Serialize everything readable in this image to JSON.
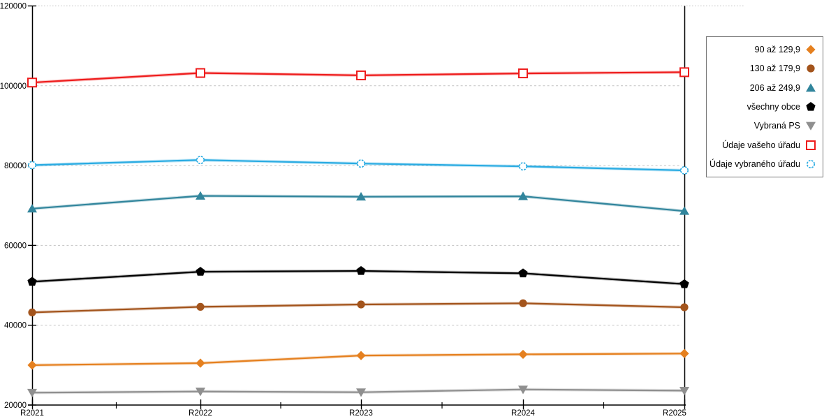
{
  "chart_data": {
    "type": "line",
    "title": "",
    "xlabel": "",
    "ylabel": "",
    "categories": [
      "R2021",
      "R2022",
      "R2023",
      "R2024",
      "R2025"
    ],
    "series": [
      {
        "name": "90 až 129,9",
        "marker": "diamond",
        "color": "#e5801f",
        "values": [
          30000,
          30500,
          32400,
          32700,
          32900
        ]
      },
      {
        "name": "130 až 179,9",
        "marker": "circle",
        "color": "#a3541c",
        "values": [
          43200,
          44600,
          45200,
          45500,
          44500
        ]
      },
      {
        "name": "206 až 249,9",
        "marker": "triangle-up",
        "color": "#31859c",
        "values": [
          69200,
          72400,
          72200,
          72300,
          68600
        ]
      },
      {
        "name": "všechny obce",
        "marker": "pentagon",
        "color": "#000000",
        "values": [
          50900,
          53400,
          53600,
          53000,
          50300
        ]
      },
      {
        "name": "Vybraná PS",
        "marker": "triangle-down",
        "color": "#8f8f8f",
        "values": [
          23100,
          23400,
          23200,
          23900,
          23600
        ]
      },
      {
        "name": "Údaje vašeho úřadu",
        "marker": "square-open",
        "color": "#ee1c1c",
        "values": [
          100800,
          103200,
          102600,
          103100,
          103400
        ]
      },
      {
        "name": "Údaje vybraného úřadu",
        "marker": "circle-open",
        "color": "#29abe2",
        "values": [
          80100,
          81400,
          80500,
          79800,
          78800
        ]
      }
    ],
    "ylim": [
      20000,
      120000
    ],
    "yticks": [
      20000,
      40000,
      60000,
      80000,
      100000,
      120000
    ],
    "ytick_labels": [
      "20000",
      "40000",
      "60000",
      "80000",
      "100000",
      "120000"
    ],
    "grid": "horizontal-dashed",
    "gridline_color": "#c3c3c3",
    "legend_position": "right"
  }
}
